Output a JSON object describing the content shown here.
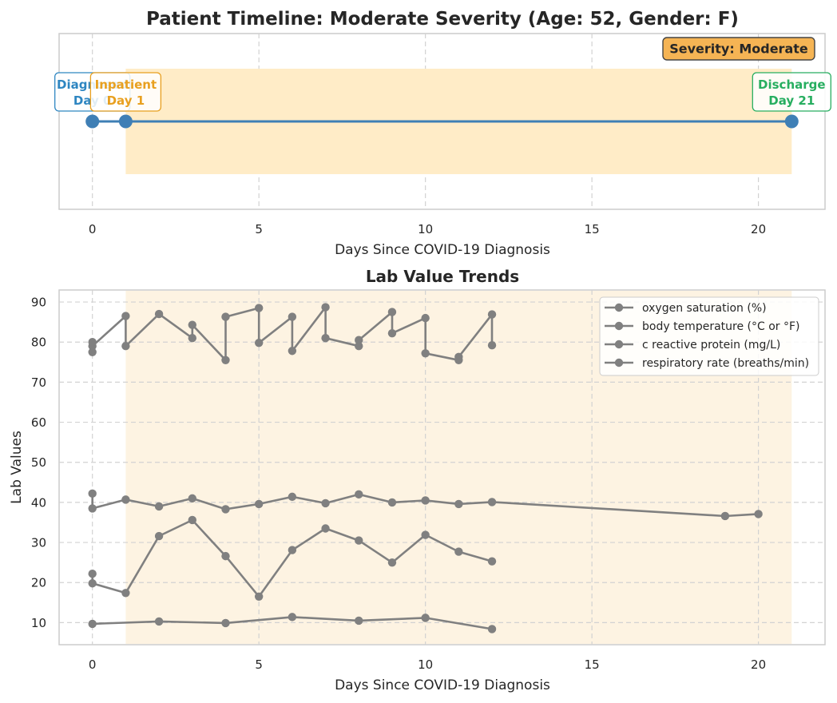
{
  "chart_data": [
    {
      "type": "timeline",
      "title": "Patient Timeline: Moderate Severity (Age: 52, Gender: F)",
      "xlabel": "Days Since COVID-19 Diagnosis",
      "xlim": [
        -1,
        22
      ],
      "xticks": [
        0,
        5,
        10,
        15,
        20
      ],
      "grid": true,
      "events": [
        {
          "name": "Diagnosed",
          "day": 0,
          "line1": "Diagnosed",
          "line2": "Day 0",
          "color": "#2e86c1"
        },
        {
          "name": "Inpatient",
          "day": 1,
          "line1": "Inpatient",
          "line2": "Day 1",
          "color": "#e8a020"
        },
        {
          "name": "Discharge",
          "day": 21,
          "line1": "Discharge",
          "line2": "Day 21",
          "color": "#27ae60"
        }
      ],
      "shaded_span": {
        "start": 1,
        "end": 21,
        "color": "#ffecc7"
      },
      "badge": {
        "text": "Severity: Moderate",
        "fill": "#f5b454",
        "placement": "top-right"
      },
      "line_color": "#3f7fb5"
    },
    {
      "type": "line",
      "title": "Lab Value Trends",
      "xlabel": "Days Since COVID-19 Diagnosis",
      "ylabel": "Lab Values",
      "xlim": [
        -1,
        22
      ],
      "ylim": [
        4.5,
        93
      ],
      "xticks": [
        0,
        5,
        10,
        15,
        20
      ],
      "yticks": [
        10,
        20,
        30,
        40,
        50,
        60,
        70,
        80,
        90
      ],
      "grid": true,
      "legend_position": "top-right",
      "shaded_span": {
        "start": 1,
        "end": 21,
        "color": "#fdf3e2"
      },
      "series_color": "#808080",
      "series": [
        {
          "name": "oxygen saturation (%)",
          "points": [
            [
              0,
              77.5
            ],
            [
              0,
              80
            ],
            [
              0,
              79
            ],
            [
              1,
              86.5
            ],
            [
              1,
              79
            ],
            [
              2,
              87
            ],
            [
              3,
              81
            ],
            [
              3,
              84.3
            ],
            [
              4,
              75.5
            ],
            [
              4,
              86.3
            ],
            [
              5,
              88.5
            ],
            [
              5,
              79.8
            ],
            [
              6,
              86.3
            ],
            [
              6,
              77.8
            ],
            [
              7,
              88.7
            ],
            [
              7,
              81
            ],
            [
              8,
              79
            ],
            [
              8,
              80.5
            ],
            [
              9,
              87.5
            ],
            [
              9,
              82.2
            ],
            [
              10,
              86
            ],
            [
              10,
              77.2
            ],
            [
              11,
              75.5
            ],
            [
              11,
              76.3
            ],
            [
              12,
              86.9
            ],
            [
              12,
              79.2
            ]
          ]
        },
        {
          "name": "body temperature (°C or °F)",
          "points": [
            [
              0,
              42.2
            ],
            [
              0,
              38.5
            ],
            [
              1,
              40.7
            ],
            [
              2,
              39
            ],
            [
              3,
              41
            ],
            [
              4,
              38.3
            ],
            [
              5,
              39.6
            ],
            [
              6,
              41.4
            ],
            [
              7,
              39.8
            ],
            [
              8,
              42
            ],
            [
              9,
              40
            ],
            [
              10,
              40.5
            ],
            [
              11,
              39.6
            ],
            [
              12,
              40.1
            ],
            [
              19,
              36.6
            ],
            [
              20,
              37.1
            ]
          ]
        },
        {
          "name": "c reactive protein (mg/L)",
          "points": [
            [
              0,
              22.2
            ],
            [
              0,
              19.8
            ],
            [
              1,
              17.4
            ],
            [
              2,
              31.6
            ],
            [
              3,
              35.6
            ],
            [
              4,
              26.6
            ],
            [
              5,
              16.5
            ],
            [
              6,
              28.1
            ],
            [
              7,
              33.5
            ],
            [
              8,
              30.5
            ],
            [
              9,
              25
            ],
            [
              10,
              31.9
            ],
            [
              11,
              27.7
            ],
            [
              12,
              25.3
            ]
          ]
        },
        {
          "name": "respiratory rate (breaths/min)",
          "points": [
            [
              0,
              9.7
            ],
            [
              2,
              10.3
            ],
            [
              4,
              9.9
            ],
            [
              6,
              11.4
            ],
            [
              8,
              10.5
            ],
            [
              10,
              11.2
            ],
            [
              12,
              8.4
            ]
          ]
        }
      ]
    }
  ]
}
